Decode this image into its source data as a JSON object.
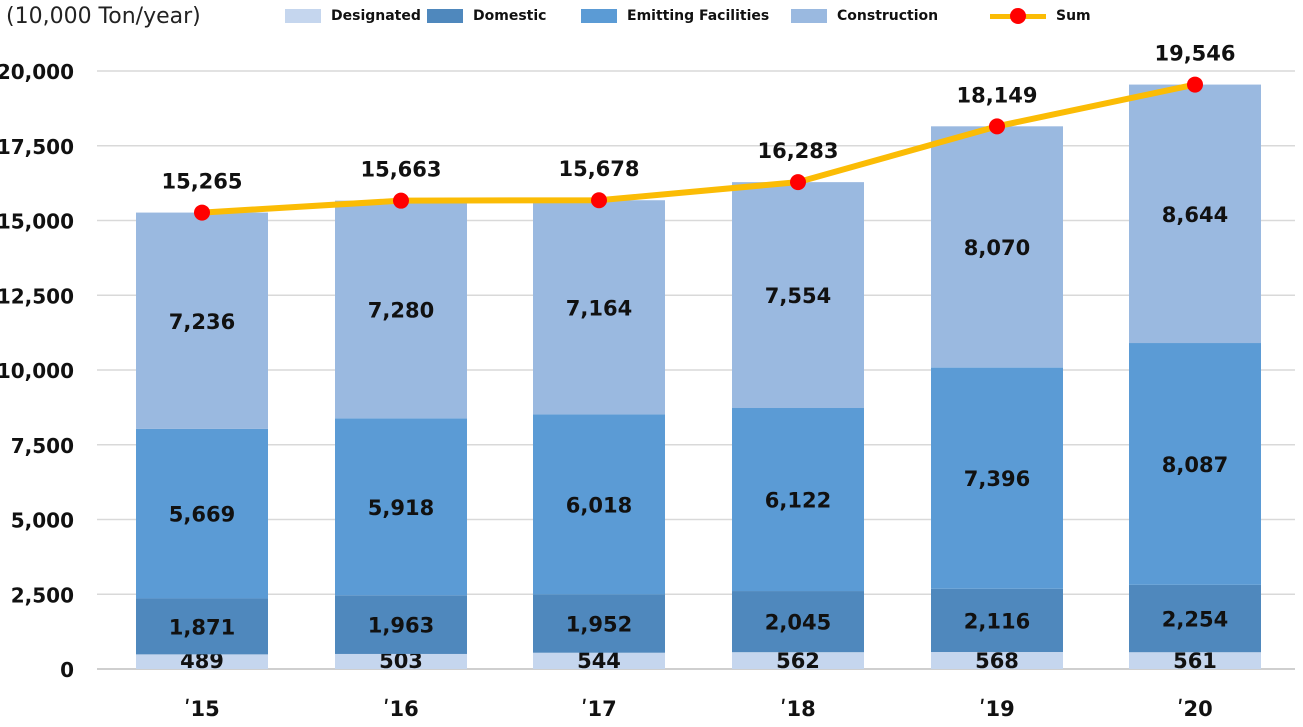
{
  "chart_data": {
    "type": "bar",
    "stacked": true,
    "unit_label": "(10,000  Ton/year)",
    "categories": [
      "ʹ15",
      "ʹ16",
      "ʹ17",
      "ʹ18",
      "ʹ19",
      "ʹ20"
    ],
    "ylim": [
      0,
      20000
    ],
    "yticks": [
      "0",
      "2,500",
      "5,000",
      "7,500",
      "10,000",
      "12,500",
      "15,000",
      "17,500",
      "20,000"
    ],
    "ytick_values": [
      0,
      2500,
      5000,
      7500,
      10000,
      12500,
      15000,
      17500,
      20000
    ],
    "grid": true,
    "legend_position": "top",
    "series": [
      {
        "name": "Designated",
        "color": "#c5d6ee",
        "values": [
          489,
          503,
          544,
          562,
          568,
          561
        ],
        "labels": [
          "489",
          "503",
          "544",
          "562",
          "568",
          "561"
        ]
      },
      {
        "name": "Domestic",
        "color": "#4f88bd",
        "values": [
          1871,
          1963,
          1952,
          2045,
          2116,
          2254
        ],
        "labels": [
          "1,871",
          "1,963",
          "1,952",
          "2,045",
          "2,116",
          "2,254"
        ]
      },
      {
        "name": "Emitting Facilities",
        "color": "#5b9bd5",
        "values": [
          5669,
          5918,
          6018,
          6122,
          7396,
          8087
        ],
        "labels": [
          "5,669",
          "5,918",
          "6,018",
          "6,122",
          "7,396",
          "8,087"
        ]
      },
      {
        "name": "Construction",
        "color": "#9ab9e0",
        "values": [
          7236,
          7280,
          7164,
          7554,
          8070,
          8644
        ],
        "labels": [
          "7,236",
          "7,280",
          "7,164",
          "7,554",
          "8,070",
          "8,644"
        ]
      }
    ],
    "line": {
      "name": "Sum",
      "line_color": "#fbbc05",
      "marker_color": "#ff0000",
      "values": [
        15265,
        15663,
        15678,
        16283,
        18149,
        19546
      ],
      "labels": [
        "15,265",
        "15,663",
        "15,678",
        "16,283",
        "18,149",
        "19,546"
      ]
    }
  }
}
